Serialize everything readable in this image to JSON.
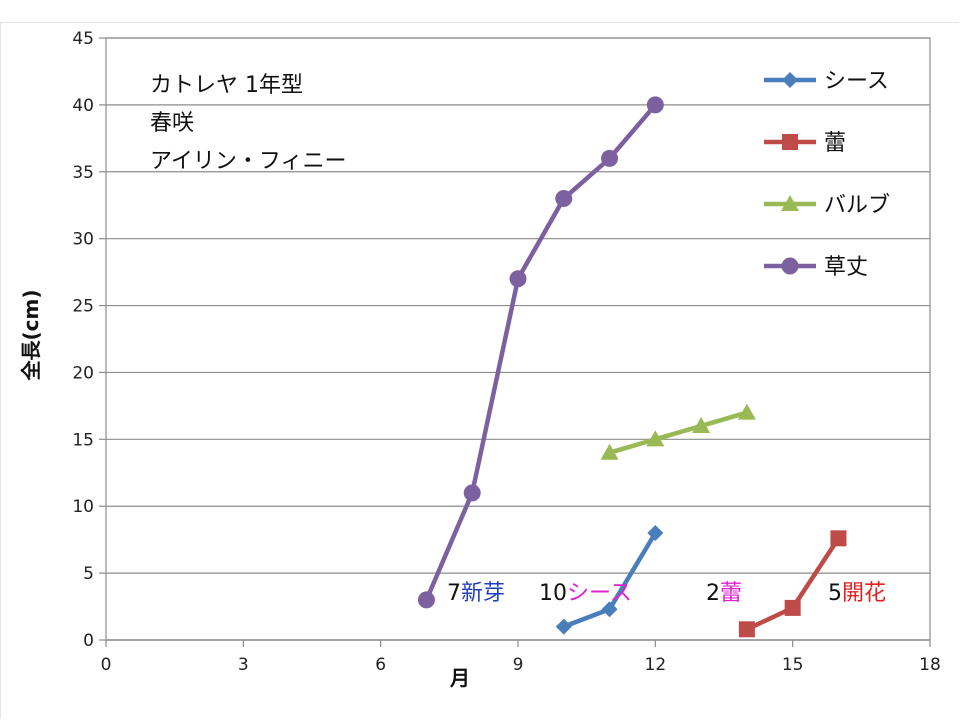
{
  "chart_data": {
    "type": "line",
    "xlabel": "月",
    "ylabel": "全長(cm)",
    "xlim": [
      0,
      18
    ],
    "ylim": [
      0,
      45
    ],
    "xticks": [
      0,
      3,
      6,
      9,
      12,
      15,
      18
    ],
    "yticks": [
      0,
      5,
      10,
      15,
      20,
      25,
      30,
      35,
      40,
      45
    ],
    "grid": true,
    "legend_position": "top-right",
    "series": [
      {
        "name": "シース",
        "color": "#4a7ebb",
        "marker": "diamond",
        "points": [
          [
            10,
            1
          ],
          [
            11,
            2.3
          ],
          [
            12,
            8
          ]
        ]
      },
      {
        "name": "蕾",
        "color": "#be4b48",
        "marker": "square",
        "points": [
          [
            14,
            0.8
          ],
          [
            15,
            2.4
          ],
          [
            16,
            7.6
          ]
        ]
      },
      {
        "name": "バルブ",
        "color": "#98b954",
        "marker": "triangle",
        "points": [
          [
            11,
            14
          ],
          [
            12,
            15
          ],
          [
            13,
            16
          ],
          [
            14,
            17
          ]
        ]
      },
      {
        "name": "草丈",
        "color": "#7d60a0",
        "marker": "circle",
        "points": [
          [
            7,
            3
          ],
          [
            8,
            11
          ],
          [
            9,
            27
          ],
          [
            10,
            33
          ],
          [
            11,
            36
          ],
          [
            12,
            40
          ]
        ]
      }
    ],
    "title_lines": [
      "カトレヤ 1年型",
      "春咲",
      "アイリン・フィニー"
    ],
    "annotations": [
      {
        "num": "7",
        "word": "新芽",
        "color": "#1f3fbf"
      },
      {
        "num": "10",
        "word": "シース",
        "color": "#e020d0"
      },
      {
        "num": "2",
        "word": "蕾",
        "color": "#e020d0"
      },
      {
        "num": "5",
        "word": "開花",
        "color": "#e02020"
      }
    ]
  }
}
